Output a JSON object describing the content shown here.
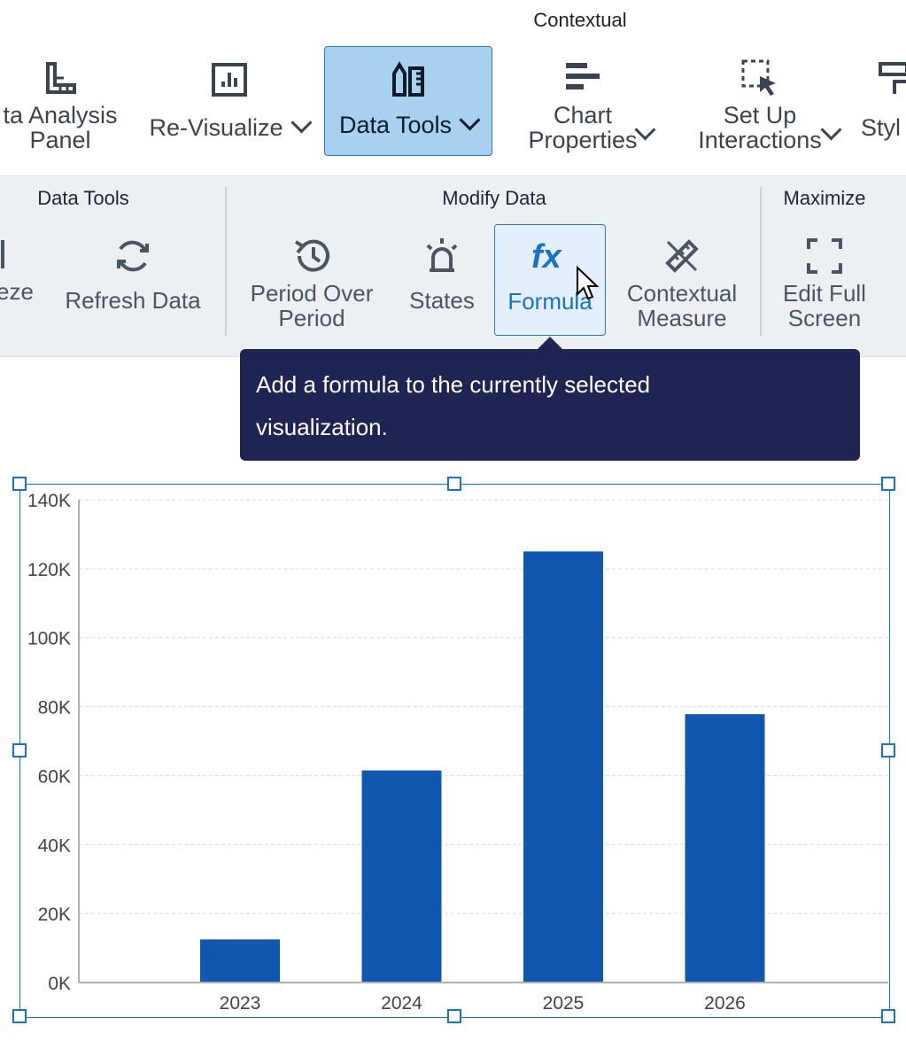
{
  "ribbon": {
    "context_label": "Contextual",
    "buttons": [
      {
        "label_line1": "ta Analysis",
        "label_line2": "Panel"
      },
      {
        "label": "Re-Visualize"
      },
      {
        "label": "Data Tools"
      },
      {
        "label_line1": "Chart",
        "label_line2": "Properties"
      },
      {
        "label_line1": "Set Up",
        "label_line2": "Interactions"
      },
      {
        "label": "Styl"
      }
    ]
  },
  "subribbon": {
    "groups": {
      "data_tools": "Data Tools",
      "modify_data": "Modify Data",
      "maximize": "Maximize"
    },
    "buttons": {
      "freeze": "eze",
      "refresh": "Refresh Data",
      "period_line1": "Period Over",
      "period_line2": "Period",
      "states": "States",
      "formula": "Formula",
      "contextual_line1": "Contextual",
      "contextual_line2": "Measure",
      "edit_line1": "Edit Full",
      "edit_line2": "Screen"
    }
  },
  "tooltip": {
    "line1": "Add a formula to the currently selected",
    "line2": "visualization."
  },
  "colors": {
    "accent": "#1a72c4",
    "active_button": "#a8d1f0",
    "bar": "#1157b0",
    "tooltip_bg": "#1f2452"
  },
  "chart_data": {
    "type": "bar",
    "categories": [
      "2023",
      "2024",
      "2025",
      "2026"
    ],
    "values": [
      12500,
      61500,
      125000,
      77800
    ],
    "ylim": [
      0,
      140000
    ],
    "yticks": [
      0,
      20000,
      40000,
      60000,
      80000,
      100000,
      120000,
      140000
    ],
    "ytick_labels": [
      "0K",
      "20K",
      "40K",
      "60K",
      "80K",
      "100K",
      "120K",
      "140K"
    ],
    "grid": true
  }
}
